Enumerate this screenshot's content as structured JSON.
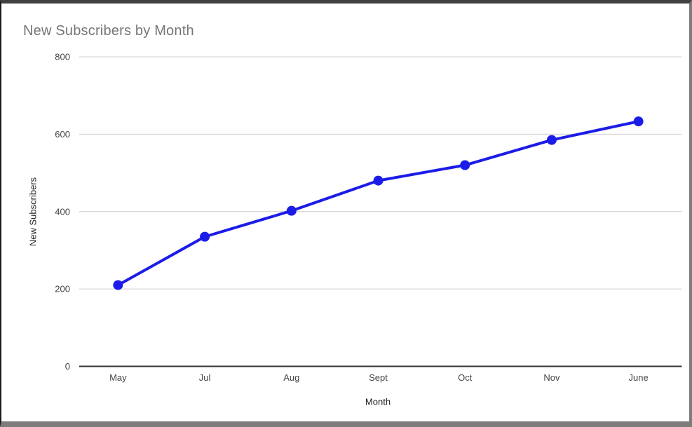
{
  "chart_data": {
    "type": "line",
    "title": "New Subscribers by Month",
    "xlabel": "Month",
    "ylabel": "New Subscribers",
    "categories": [
      "May",
      "Jul",
      "Aug",
      "Sept",
      "Oct",
      "Nov",
      "June"
    ],
    "values": [
      210,
      335,
      402,
      480,
      520,
      585,
      633
    ],
    "series_name": "New Subscribers",
    "ylim": [
      0,
      800
    ],
    "yticks": [
      0,
      200,
      400,
      600,
      800
    ],
    "grid": "horizontal-only",
    "legend_position": "none",
    "colors": {
      "series_line": "#1c1ce8",
      "data_point": "#1c1ce8",
      "gridline": "#cccccc",
      "zero_axis_line": "#333333",
      "title_text": "#757575",
      "tick_label_text": "#444444",
      "axis_title_text": "#222222",
      "background": "#ffffff"
    }
  }
}
